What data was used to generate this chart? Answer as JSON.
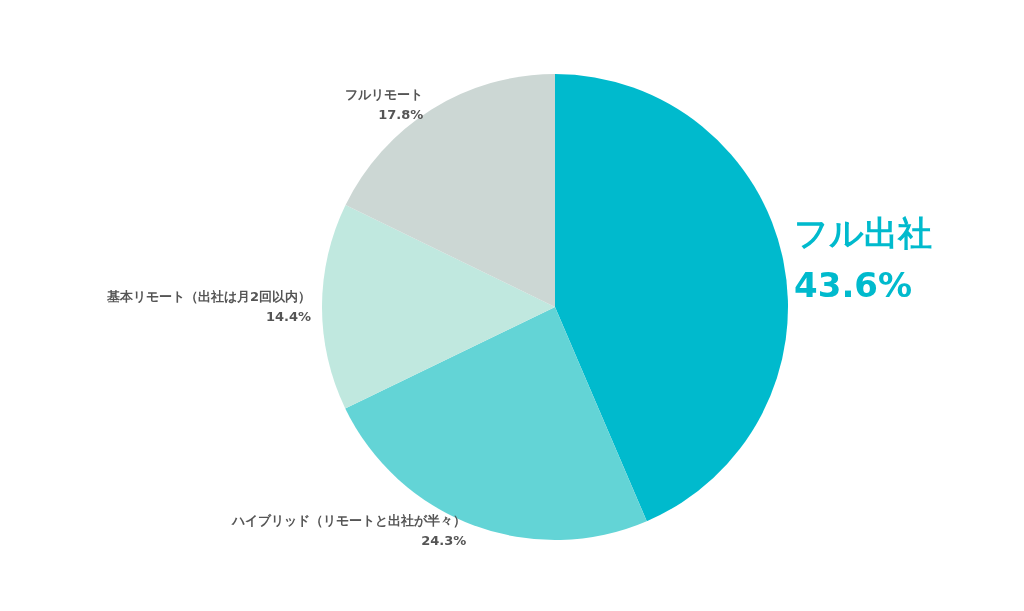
{
  "chart_data": {
    "type": "pie",
    "categories": [
      "フル出社",
      "ハイブリッド（リモートと出社が半々）",
      "基本リモート（出社は月2回以内）",
      "フルリモート"
    ],
    "values": [
      43.6,
      24.3,
      14.4,
      17.8
    ],
    "colors": [
      "#00bacd",
      "#63d4d6",
      "#c0e8df",
      "#ccd7d4"
    ],
    "value_labels": [
      "43.6%",
      "24.3%",
      "14.4%",
      "17.8%"
    ],
    "legend": false
  }
}
